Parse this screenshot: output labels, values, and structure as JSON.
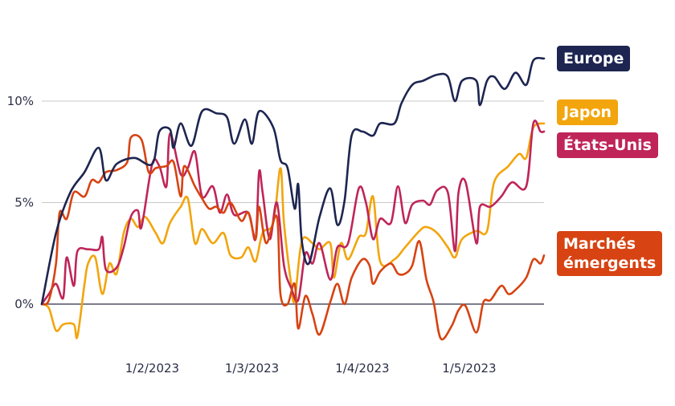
{
  "chart_data": {
    "type": "line",
    "title": "",
    "xlabel": "",
    "ylabel": "",
    "x_unit": "day offset from 1/1/2023",
    "xlim": [
      0,
      141
    ],
    "ylim": [
      -2.6,
      14
    ],
    "yticks": [
      {
        "value": 0,
        "label": "0%"
      },
      {
        "value": 5,
        "label": "5%"
      },
      {
        "value": 10,
        "label": "10%"
      }
    ],
    "xticks": [
      {
        "value": 31,
        "label": "1/2/2023"
      },
      {
        "value": 59,
        "label": "1/3/2023"
      },
      {
        "value": 90,
        "label": "1/4/2023"
      },
      {
        "value": 120,
        "label": "1/5/2023"
      }
    ],
    "grid": "horizontal",
    "legend": "right, inline labels at line ends",
    "series": [
      {
        "name": "Europe",
        "color": "#1d2550",
        "x": [
          0,
          4,
          8,
          12,
          16,
          18,
          21,
          26,
          31,
          33,
          36,
          37,
          39,
          42,
          45,
          49,
          52,
          54,
          57,
          59,
          61,
          65,
          67,
          69,
          71,
          72,
          73,
          75,
          78,
          81,
          83,
          85,
          87,
          90,
          93,
          95,
          99,
          101,
          104,
          107,
          111,
          114,
          116,
          118,
          122,
          123,
          125,
          127,
          130,
          133,
          136,
          138,
          141
        ],
        "y": [
          0,
          3.5,
          5.5,
          6.5,
          7.7,
          6.1,
          6.9,
          7.2,
          6.9,
          8.5,
          8.6,
          7.7,
          8.9,
          7.8,
          9.5,
          9.4,
          9.2,
          7.9,
          9.1,
          7.9,
          9.5,
          8.7,
          7.1,
          6.7,
          4.7,
          5.9,
          3.1,
          2.0,
          4.3,
          5.7,
          3.9,
          5.1,
          8.3,
          8.5,
          8.3,
          8.9,
          8.9,
          9.9,
          10.8,
          11.0,
          11.3,
          11.2,
          10.0,
          11.0,
          11.0,
          9.8,
          11.0,
          11.2,
          10.6,
          11.4,
          10.8,
          12.0,
          12.1
        ]
      },
      {
        "name": "Japon",
        "color": "#f2a50c",
        "x": [
          0,
          2,
          4,
          6,
          9,
          10,
          12,
          13,
          15,
          17,
          19,
          21,
          23,
          25,
          27,
          29,
          32,
          34,
          36,
          39,
          41,
          43,
          45,
          48,
          51,
          53,
          56,
          58,
          60,
          62,
          65,
          67,
          68,
          70,
          71,
          73,
          76,
          78,
          81,
          82,
          84,
          86,
          89,
          91,
          93,
          95,
          99,
          102,
          106,
          108,
          111,
          114,
          116,
          118,
          122,
          125,
          127,
          131,
          134,
          136,
          138,
          141
        ],
        "y": [
          0,
          -0.2,
          -1.3,
          -1.0,
          -1.0,
          -1.6,
          1.0,
          2.0,
          2.3,
          0.5,
          2.0,
          1.5,
          3.5,
          4.2,
          3.8,
          4.3,
          3.5,
          3.0,
          4.0,
          4.8,
          5.2,
          3.0,
          3.7,
          3.0,
          3.5,
          2.4,
          2.3,
          2.8,
          2.1,
          3.5,
          4.0,
          6.7,
          4.0,
          1.0,
          0.2,
          3.1,
          3.0,
          2.7,
          3.0,
          1.3,
          3.0,
          2.2,
          3.3,
          3.5,
          5.3,
          2.1,
          2.2,
          2.8,
          3.6,
          3.8,
          3.5,
          2.8,
          2.3,
          3.2,
          3.6,
          3.6,
          6.0,
          6.8,
          7.4,
          7.2,
          8.7,
          8.9
        ]
      },
      {
        "name": "États-Unis",
        "color": "#bf2558",
        "x": [
          0,
          2,
          4,
          6,
          7,
          9,
          10,
          13,
          16,
          17,
          18,
          21,
          23,
          25,
          27,
          28,
          31,
          33,
          35,
          36,
          39,
          41,
          43,
          45,
          48,
          50,
          52,
          54,
          58,
          60,
          61,
          62,
          64,
          66,
          68,
          70,
          72,
          74,
          76,
          78,
          81,
          83,
          86,
          89,
          91,
          93,
          95,
          98,
          100,
          102,
          104,
          107,
          109,
          111,
          114,
          116,
          117,
          119,
          122,
          123,
          126,
          129,
          132,
          136,
          138,
          140,
          141
        ],
        "y": [
          0,
          0.5,
          1.0,
          0.3,
          2.3,
          0.9,
          2.6,
          2.7,
          2.7,
          3.3,
          1.7,
          1.8,
          2.8,
          4.3,
          4.6,
          3.8,
          6.9,
          6.8,
          5.8,
          8.4,
          6.4,
          6.7,
          7.5,
          5.3,
          5.8,
          4.5,
          5.4,
          4.4,
          4.5,
          3.2,
          6.5,
          5.5,
          3.2,
          5.0,
          1.9,
          0.8,
          0.2,
          2.5,
          2.0,
          3.0,
          1.2,
          2.8,
          3.0,
          5.7,
          5.0,
          3.2,
          4.2,
          4.0,
          5.8,
          4.0,
          4.9,
          5.1,
          4.9,
          5.6,
          5.5,
          2.6,
          5.5,
          6.0,
          3.0,
          4.8,
          4.8,
          5.3,
          6.0,
          5.8,
          8.9,
          8.5,
          8.5
        ]
      },
      {
        "name": "Marchés émergents",
        "color": "#d74312",
        "x": [
          0,
          2,
          4,
          5,
          7,
          9,
          12,
          14,
          16,
          18,
          21,
          24,
          25,
          28,
          30,
          32,
          35,
          37,
          39,
          40,
          43,
          45,
          47,
          49,
          51,
          53,
          56,
          58,
          60,
          61,
          63,
          66,
          67,
          69,
          71,
          72,
          74,
          76,
          78,
          81,
          83,
          85,
          87,
          90,
          92,
          93,
          95,
          98,
          100,
          102,
          104,
          106,
          108,
          110,
          112,
          115,
          117,
          119,
          122,
          124,
          126,
          129,
          131,
          133,
          136,
          138,
          140,
          141
        ],
        "y": [
          0,
          0.2,
          2.0,
          4.5,
          4.2,
          5.5,
          5.3,
          6.1,
          6.0,
          6.5,
          6.6,
          7.0,
          8.2,
          8.1,
          6.5,
          6.7,
          6.8,
          7.0,
          5.3,
          6.8,
          5.8,
          5.2,
          4.7,
          4.8,
          4.5,
          5.0,
          4.1,
          4.5,
          3.2,
          4.8,
          3.0,
          4.3,
          0.5,
          0.0,
          1.0,
          -1.2,
          0.4,
          -0.5,
          -1.5,
          0.1,
          1.0,
          0.0,
          1.3,
          2.2,
          1.9,
          1.0,
          1.6,
          2.0,
          1.5,
          1.5,
          1.9,
          3.1,
          1.2,
          0.1,
          -1.7,
          -1.1,
          -0.3,
          -0.1,
          -1.4,
          0.1,
          0.2,
          0.9,
          0.5,
          0.7,
          1.3,
          2.2,
          2.0,
          2.4
        ]
      }
    ],
    "labels": {
      "europe": "Europe",
      "japon": "Japon",
      "usa": "États-Unis",
      "em_line1": "Marchés",
      "em_line2": "émergents"
    }
  }
}
